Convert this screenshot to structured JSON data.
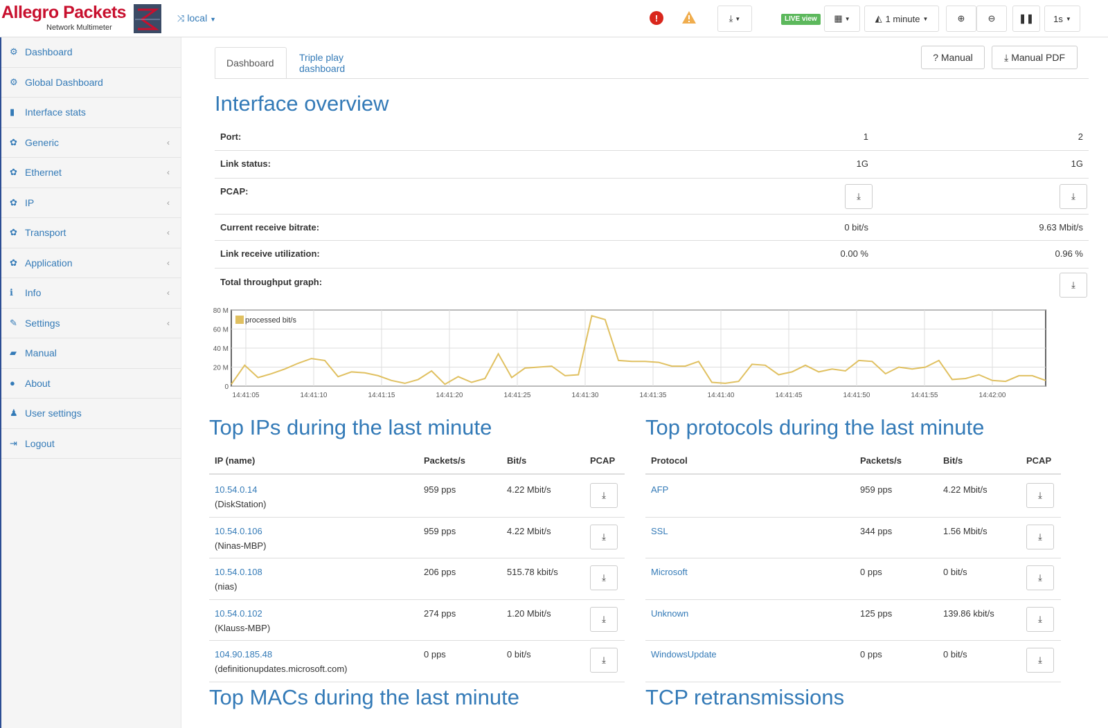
{
  "header": {
    "logo_title": "Allegro Packets",
    "logo_subtitle": "Network Multimeter",
    "device": "local",
    "error_badge": "!",
    "live_label": "LIVE view",
    "time_range": "1 minute",
    "refresh": "1s"
  },
  "sidebar": {
    "items": [
      {
        "label": "Dashboard",
        "icon": "dashboard-icon",
        "glyph": "⚙",
        "chev": ""
      },
      {
        "label": "Global Dashboard",
        "icon": "dashboard-icon",
        "glyph": "⚙",
        "chev": ""
      },
      {
        "label": "Interface stats",
        "icon": "bar-chart-icon",
        "glyph": "▮",
        "chev": ""
      },
      {
        "label": "Generic",
        "icon": "gear-icon",
        "glyph": "✿",
        "chev": "‹"
      },
      {
        "label": "Ethernet",
        "icon": "gear-icon",
        "glyph": "✿",
        "chev": "‹"
      },
      {
        "label": "IP",
        "icon": "gear-icon",
        "glyph": "✿",
        "chev": "‹"
      },
      {
        "label": "Transport",
        "icon": "gear-icon",
        "glyph": "✿",
        "chev": "‹"
      },
      {
        "label": "Application",
        "icon": "gear-icon",
        "glyph": "✿",
        "chev": "‹"
      },
      {
        "label": "Info",
        "icon": "info-icon",
        "glyph": "ℹ",
        "chev": "‹"
      },
      {
        "label": "Settings",
        "icon": "wrench-icon",
        "glyph": "✎",
        "chev": "‹"
      },
      {
        "label": "Manual",
        "icon": "book-icon",
        "glyph": "▰",
        "chev": ""
      },
      {
        "label": "About",
        "icon": "info-circle-icon",
        "glyph": "●",
        "chev": ""
      },
      {
        "label": "User settings",
        "icon": "user-icon",
        "glyph": "♟",
        "chev": ""
      },
      {
        "label": "Logout",
        "icon": "logout-icon",
        "glyph": "⇥",
        "chev": ""
      }
    ]
  },
  "tabs": {
    "dashboard": "Dashboard",
    "triple_play": "Triple play dashboard"
  },
  "buttons": {
    "manual": "? Manual",
    "manual_pdf": "Manual PDF"
  },
  "overview": {
    "title": "Interface overview",
    "port_label": "Port:",
    "port1": "1",
    "port2": "2",
    "link_label": "Link status:",
    "link1": "1G",
    "link2": "1G",
    "pcap_label": "PCAP:",
    "bitrate_label": "Current receive bitrate:",
    "bitrate1": "0 bit/s",
    "bitrate2": "9.63 Mbit/s",
    "util_label": "Link receive utilization:",
    "util1": "0.00 %",
    "util2": "0.96 %",
    "graph_label": "Total throughput graph:"
  },
  "chart_data": {
    "type": "line",
    "series": [
      {
        "name": "processed bit/s",
        "color": "#e0c060",
        "values": [
          2,
          22,
          9,
          13,
          18,
          24,
          29,
          27,
          10,
          15,
          14,
          11,
          6,
          3,
          7,
          16,
          2,
          10,
          4,
          8,
          34,
          9,
          19,
          20,
          21,
          11,
          12,
          74,
          70,
          27,
          26,
          26,
          25,
          21,
          21,
          26,
          4,
          3,
          5,
          23,
          22,
          12,
          15,
          22,
          15,
          18,
          16,
          27,
          26,
          13,
          20,
          18,
          20,
          27,
          7,
          8,
          12,
          6,
          5,
          11,
          11,
          6
        ]
      }
    ],
    "x_ticks": [
      "14:41:05",
      "14:41:10",
      "14:41:15",
      "14:41:20",
      "14:41:25",
      "14:41:30",
      "14:41:35",
      "14:41:40",
      "14:41:45",
      "14:41:50",
      "14:41:55",
      "14:42:00"
    ],
    "y_ticks": [
      "0",
      "20 M",
      "40 M",
      "60 M",
      "80 M"
    ],
    "ylim": [
      0,
      80
    ],
    "grid": true,
    "legend": "top-left"
  },
  "top_ips": {
    "title": "Top IPs during the last minute",
    "headers": {
      "ip": "IP (name)",
      "pps": "Packets/s",
      "bps": "Bit/s",
      "pcap": "PCAP"
    },
    "rows": [
      {
        "ip": "10.54.0.14",
        "name": "(DiskStation)",
        "pps": "959 pps",
        "bps": "4.22 Mbit/s"
      },
      {
        "ip": "10.54.0.106",
        "name": "(Ninas-MBP)",
        "pps": "959 pps",
        "bps": "4.22 Mbit/s"
      },
      {
        "ip": "10.54.0.108",
        "name": "(nias)",
        "pps": "206 pps",
        "bps": "515.78 kbit/s"
      },
      {
        "ip": "10.54.0.102",
        "name": "(Klauss-MBP)",
        "pps": "274 pps",
        "bps": "1.20 Mbit/s"
      },
      {
        "ip": "104.90.185.48",
        "name": "(definitionupdates.microsoft.com)",
        "pps": "0 pps",
        "bps": "0 bit/s"
      }
    ]
  },
  "top_protocols": {
    "title": "Top protocols during the last minute",
    "headers": {
      "proto": "Protocol",
      "pps": "Packets/s",
      "bps": "Bit/s",
      "pcap": "PCAP"
    },
    "rows": [
      {
        "proto": "AFP",
        "pps": "959 pps",
        "bps": "4.22 Mbit/s"
      },
      {
        "proto": "SSL",
        "pps": "344 pps",
        "bps": "1.56 Mbit/s"
      },
      {
        "proto": "Microsoft",
        "pps": "0 pps",
        "bps": "0 bit/s"
      },
      {
        "proto": "Unknown",
        "pps": "125 pps",
        "bps": "139.86 kbit/s"
      },
      {
        "proto": "WindowsUpdate",
        "pps": "0 pps",
        "bps": "0 bit/s"
      }
    ]
  },
  "sections": {
    "top_macs": "Top MACs during the last minute",
    "tcp_retrans": "TCP retransmissions"
  }
}
